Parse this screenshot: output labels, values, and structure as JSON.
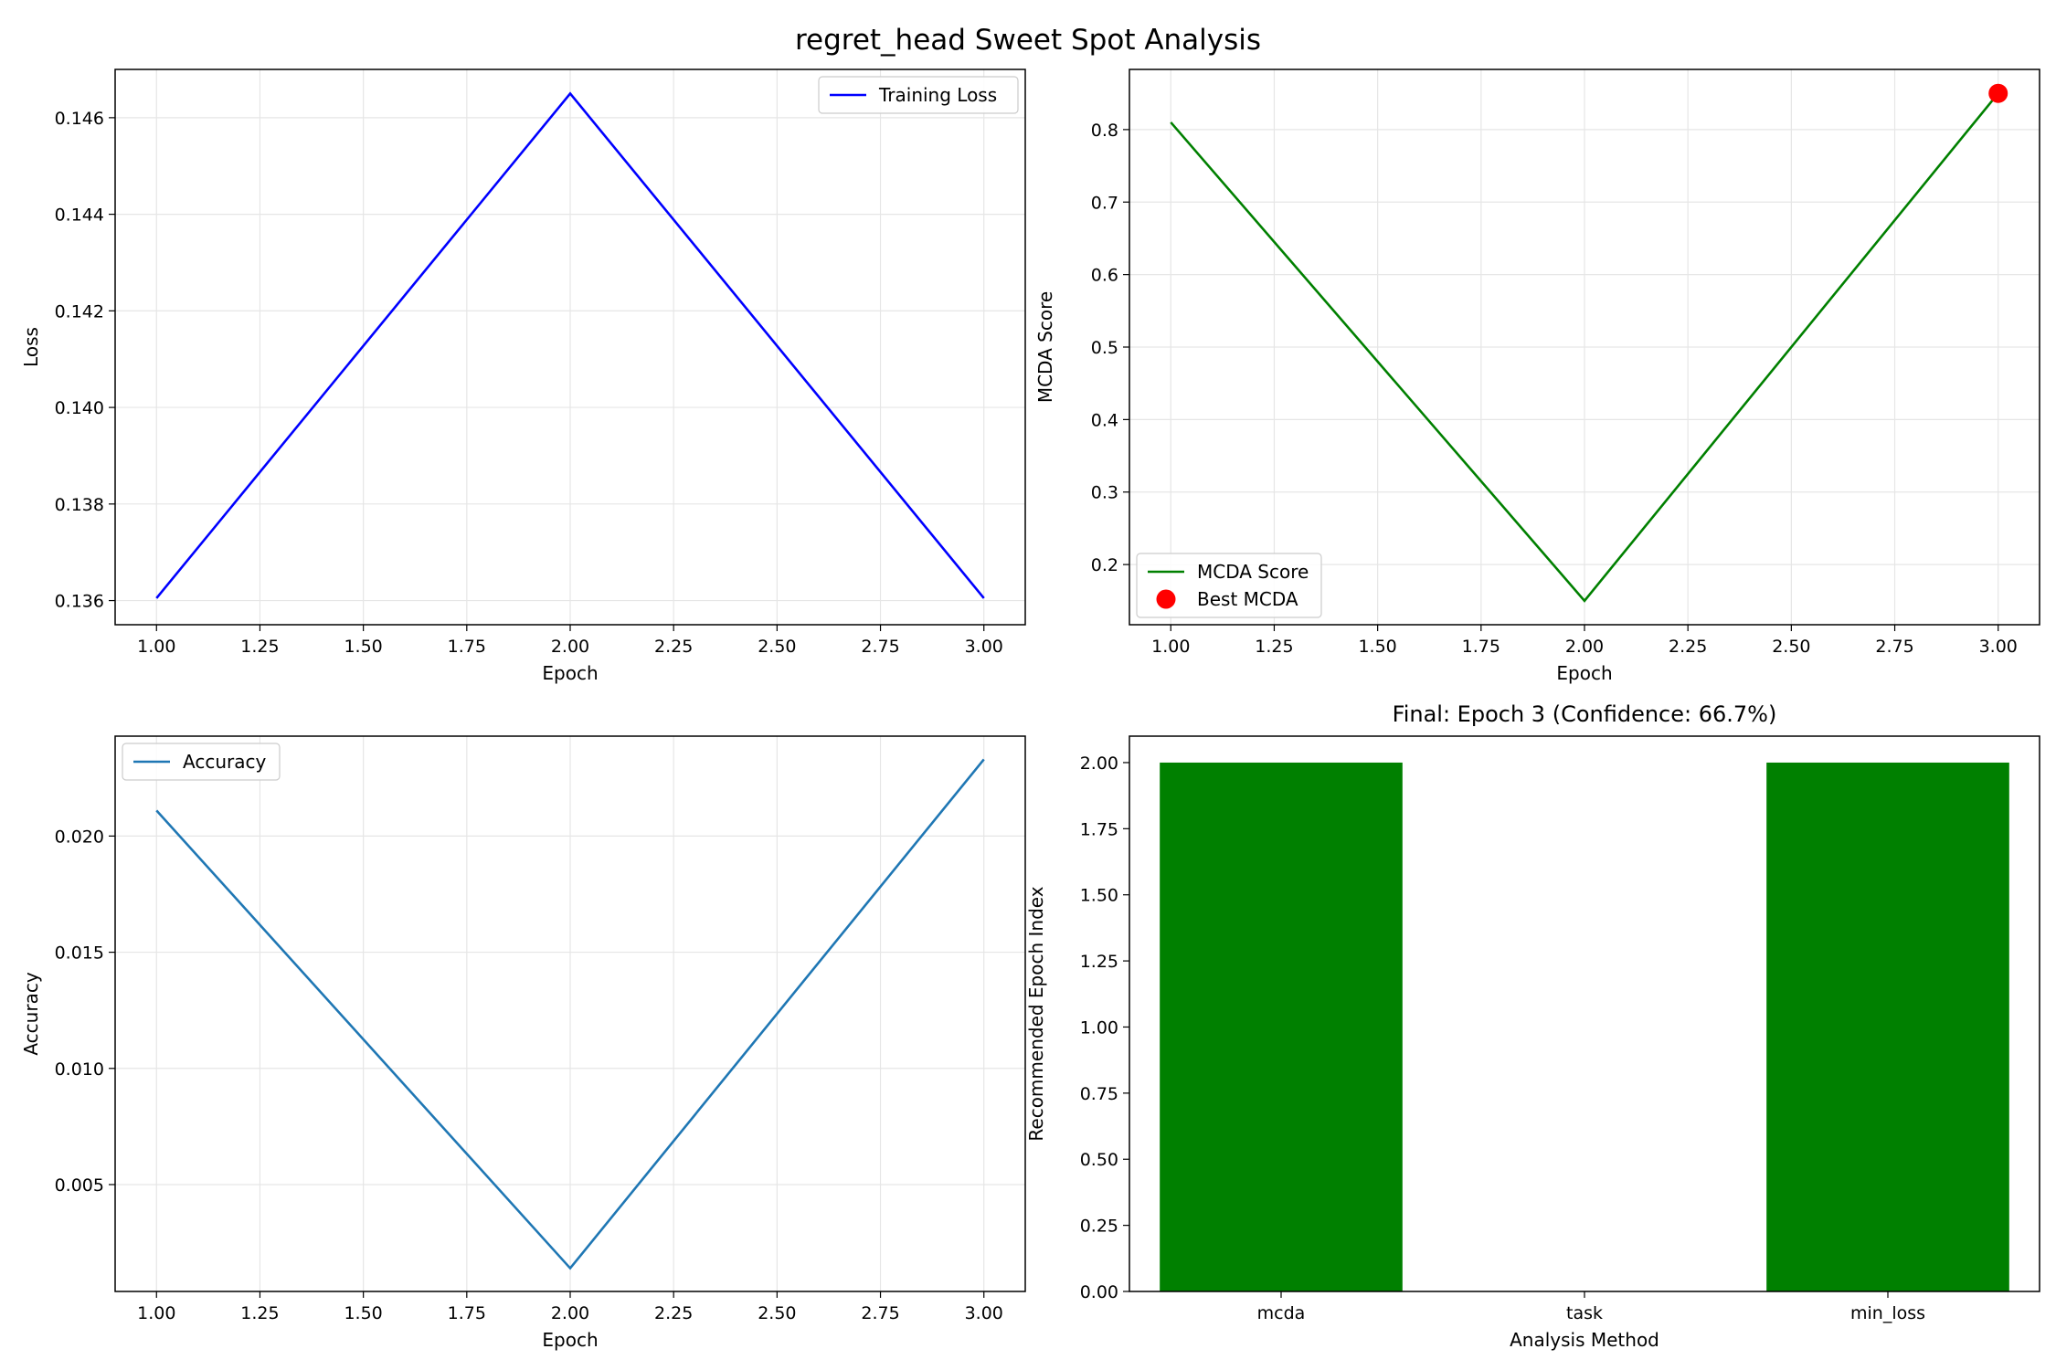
{
  "figure": {
    "title": "regret_head Sweet Spot Analysis"
  },
  "chart_data": [
    {
      "id": "loss",
      "type": "line",
      "title": "",
      "xlabel": "Epoch",
      "ylabel": "Loss",
      "x": [
        1,
        2,
        3
      ],
      "series": [
        {
          "name": "Training Loss",
          "values": [
            0.13605,
            0.1465,
            0.13605
          ],
          "color": "#0000ff"
        }
      ],
      "xlim": [
        0.9,
        3.1
      ],
      "ylim": [
        0.1355,
        0.147
      ],
      "xticks": [
        1.0,
        1.25,
        1.5,
        1.75,
        2.0,
        2.25,
        2.5,
        2.75,
        3.0
      ],
      "xtick_labels": [
        "1.00",
        "1.25",
        "1.50",
        "1.75",
        "2.00",
        "2.25",
        "2.50",
        "2.75",
        "3.00"
      ],
      "yticks": [
        0.136,
        0.138,
        0.14,
        0.142,
        0.144,
        0.146
      ],
      "ytick_labels": [
        "0.136",
        "0.138",
        "0.140",
        "0.142",
        "0.144",
        "0.146"
      ],
      "grid": true,
      "legend": "top-right"
    },
    {
      "id": "mcda",
      "type": "line",
      "title": "",
      "xlabel": "Epoch",
      "ylabel": "MCDA Score",
      "x": [
        1,
        2,
        3
      ],
      "series": [
        {
          "name": "MCDA Score",
          "values": [
            0.81,
            0.15,
            0.85
          ],
          "color": "#008000"
        }
      ],
      "markers": [
        {
          "name": "Best MCDA",
          "x": 3,
          "y": 0.85,
          "color": "#ff0000"
        }
      ],
      "xlim": [
        0.9,
        3.1
      ],
      "ylim": [
        0.117,
        0.883
      ],
      "xticks": [
        1.0,
        1.25,
        1.5,
        1.75,
        2.0,
        2.25,
        2.5,
        2.75,
        3.0
      ],
      "xtick_labels": [
        "1.00",
        "1.25",
        "1.50",
        "1.75",
        "2.00",
        "2.25",
        "2.50",
        "2.75",
        "3.00"
      ],
      "yticks": [
        0.2,
        0.3,
        0.4,
        0.5,
        0.6,
        0.7,
        0.8
      ],
      "ytick_labels": [
        "0.2",
        "0.3",
        "0.4",
        "0.5",
        "0.6",
        "0.7",
        "0.8"
      ],
      "grid": true,
      "legend": "bottom-left"
    },
    {
      "id": "accuracy",
      "type": "line",
      "title": "",
      "xlabel": "Epoch",
      "ylabel": "Accuracy",
      "x": [
        1,
        2,
        3
      ],
      "series": [
        {
          "name": "Accuracy",
          "values": [
            0.0211,
            0.0014,
            0.0233
          ],
          "color": "#1f77b4"
        }
      ],
      "xlim": [
        0.9,
        3.1
      ],
      "ylim": [
        0.0004,
        0.0243
      ],
      "xticks": [
        1.0,
        1.25,
        1.5,
        1.75,
        2.0,
        2.25,
        2.5,
        2.75,
        3.0
      ],
      "xtick_labels": [
        "1.00",
        "1.25",
        "1.50",
        "1.75",
        "2.00",
        "2.25",
        "2.50",
        "2.75",
        "3.00"
      ],
      "yticks": [
        0.005,
        0.01,
        0.015,
        0.02
      ],
      "ytick_labels": [
        "0.005",
        "0.010",
        "0.015",
        "0.020"
      ],
      "grid": true,
      "legend": "top-left"
    },
    {
      "id": "recommend",
      "type": "bar",
      "title": "Final: Epoch 3 (Confidence: 66.7%)",
      "xlabel": "Analysis Method",
      "ylabel": "Recommended Epoch Index",
      "categories": [
        "mcda",
        "task",
        "min_loss"
      ],
      "values": [
        2,
        0,
        2
      ],
      "color": "#008000",
      "ylim": [
        0,
        2.1
      ],
      "yticks": [
        0,
        0.25,
        0.5,
        0.75,
        1.0,
        1.25,
        1.5,
        1.75,
        2.0
      ],
      "ytick_labels": [
        "0.00",
        "0.25",
        "0.50",
        "0.75",
        "1.00",
        "1.25",
        "1.50",
        "1.75",
        "2.00"
      ],
      "grid": false
    }
  ]
}
